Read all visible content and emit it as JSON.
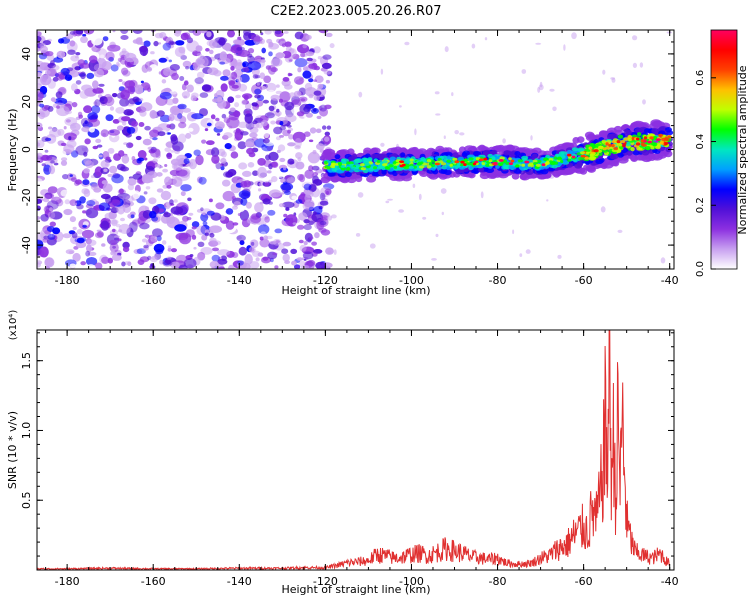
{
  "title": "C2E2.2023.005.20.26.R07",
  "chart_data": [
    {
      "type": "heatmap",
      "xlabel": "Height of straight line (km)",
      "ylabel": "Frequency (Hz)",
      "xlim": [
        -187,
        -39
      ],
      "ylim": [
        -50,
        50
      ],
      "x_ticks": [
        -180,
        -160,
        -140,
        -120,
        -100,
        -80,
        -60,
        -40
      ],
      "y_ticks": [
        -40,
        -20,
        0,
        20,
        40
      ],
      "noise_region_x": [
        -187,
        -120
      ],
      "signal_band": {
        "x_start": -120,
        "x_end": -40,
        "center_frequency": [
          {
            "x": -120,
            "y": -7
          },
          {
            "x": -100,
            "y": -6
          },
          {
            "x": -80,
            "y": -5
          },
          {
            "x": -70,
            "y": -6
          },
          {
            "x": -60,
            "y": -2
          },
          {
            "x": -50,
            "y": 3
          },
          {
            "x": -42,
            "y": 4
          }
        ]
      },
      "colorbar": {
        "label": "Normalized spectral amplitude",
        "range": [
          0,
          0.75
        ],
        "ticks": [
          0.0,
          0.2,
          0.4,
          0.6
        ],
        "tick_labels": [
          "0.0",
          "0.2",
          "0.4",
          "0.6"
        ],
        "colors": [
          "#ffffff",
          "#c8a0f0",
          "#8c30e0",
          "#5010d8",
          "#0000ff",
          "#00a0ff",
          "#00e8c0",
          "#00ff00",
          "#c0ff00",
          "#ffc000",
          "#ff4000",
          "#ff0000",
          "#ff0060"
        ]
      }
    },
    {
      "type": "line",
      "xlabel": "Height of straight line (km)",
      "ylabel": "SNR (10 * v/v)",
      "scale_label": "(x10⁴)",
      "xlim": [
        -187,
        -39
      ],
      "ylim": [
        0,
        1.72
      ],
      "x_ticks": [
        -180,
        -160,
        -140,
        -120,
        -100,
        -80,
        -60,
        -40
      ],
      "y_ticks": [
        0.5,
        1.0,
        1.5
      ],
      "y_tick_labels": [
        "0.5",
        "1.0",
        "1.5"
      ],
      "color": "#e03030",
      "series": [
        {
          "x": [
            -187,
            -180,
            -170,
            -160,
            -150,
            -140,
            -130,
            -125,
            -120,
            -117,
            -115,
            -112,
            -110,
            -108,
            -106,
            -104,
            -102,
            -100,
            -98,
            -96,
            -94,
            -92,
            -90,
            -88,
            -86,
            -84,
            -82,
            -80,
            -78,
            -76,
            -74,
            -72,
            -70,
            -68,
            -66,
            -64,
            -62,
            -60,
            -59,
            -58,
            -57,
            -56,
            -55,
            -54.5,
            -54,
            -53.5,
            -53,
            -52.5,
            -52,
            -51.5,
            -51,
            -50,
            -49,
            -48,
            -46,
            -44,
            -42,
            -41,
            -40
          ],
          "y": [
            0.01,
            0.01,
            0.015,
            0.01,
            0.01,
            0.015,
            0.015,
            0.02,
            0.02,
            0.04,
            0.06,
            0.07,
            0.08,
            0.13,
            0.12,
            0.1,
            0.11,
            0.13,
            0.14,
            0.12,
            0.15,
            0.18,
            0.16,
            0.14,
            0.11,
            0.1,
            0.09,
            0.1,
            0.06,
            0.05,
            0.05,
            0.06,
            0.1,
            0.12,
            0.18,
            0.21,
            0.3,
            0.36,
            0.32,
            0.5,
            0.42,
            0.65,
            1.2,
            0.9,
            1.72,
            0.8,
            1.1,
            0.6,
            1.3,
            0.7,
            1.28,
            0.4,
            0.25,
            0.15,
            0.12,
            0.1,
            0.14,
            0.08,
            0.06
          ]
        }
      ]
    }
  ]
}
